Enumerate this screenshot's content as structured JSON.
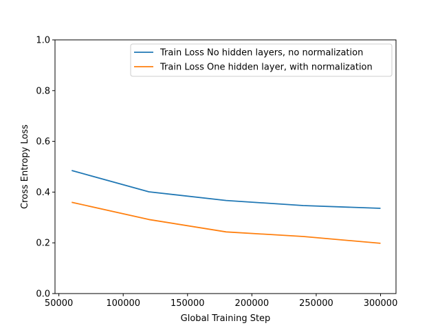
{
  "chart_data": {
    "type": "line",
    "xlabel": "Global Training Step",
    "ylabel": "Cross Entropy Loss",
    "xlim": [
      47000,
      312000
    ],
    "ylim": [
      0.0,
      1.0
    ],
    "grid": false,
    "legend_position": "upper-right",
    "x_ticks": [
      50000,
      100000,
      150000,
      200000,
      250000,
      300000
    ],
    "x_tick_labels": [
      "50000",
      "100000",
      "150000",
      "200000",
      "250000",
      "300000"
    ],
    "y_ticks": [
      0.0,
      0.2,
      0.4,
      0.6,
      0.8,
      1.0
    ],
    "y_tick_labels": [
      "0.0",
      "0.2",
      "0.4",
      "0.6",
      "0.8",
      "1.0"
    ],
    "x": [
      60000,
      120000,
      180000,
      240000,
      300000
    ],
    "series": [
      {
        "name": "Train Loss No hidden layers, no normalization",
        "color": "#1f77b4",
        "values": [
          0.485,
          0.401,
          0.367,
          0.347,
          0.336
        ]
      },
      {
        "name": "Train Loss One hidden layer, with normalization",
        "color": "#ff7f0e",
        "values": [
          0.36,
          0.292,
          0.243,
          0.225,
          0.198
        ]
      }
    ]
  }
}
